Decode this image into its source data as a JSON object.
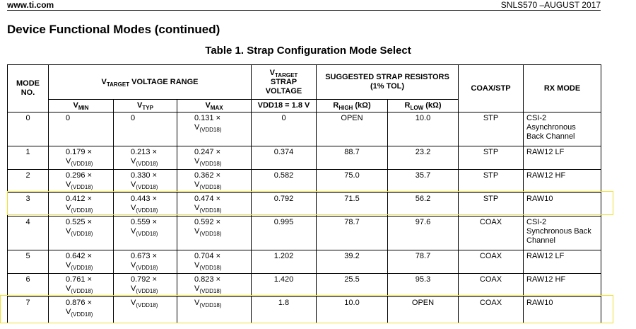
{
  "header": {
    "site": "www.ti.com",
    "doc": "SNLS570 –AUGUST 2017"
  },
  "title": "Device Functional Modes (continued)",
  "table": {
    "caption": "Table 1.  Strap Configuration Mode Select",
    "head": [
      [
        "MODE\nNO.",
        {
          "pre": "V",
          "sub": "TARGET",
          "post": " VOLTAGE RANGE"
        },
        {
          "pre": "V",
          "sub": "TARGET",
          "post": "\nSTRAP\nVOLTAGE"
        },
        "SUGGESTED STRAP RESISTORS\n(1% TOL)",
        "COAX/STP",
        "RX MODE"
      ],
      [
        {
          "pre": "V",
          "sub": "MIN"
        },
        {
          "pre": "V",
          "sub": "TYP"
        },
        {
          "pre": "V",
          "sub": "MAX"
        },
        "VDD18 = 1.8 V",
        {
          "pre": "R",
          "sub": "HIGH",
          "post": " (kΩ)"
        },
        {
          "pre": "R",
          "sub": "LOW",
          "post": " (kΩ)"
        }
      ]
    ],
    "rows": [
      [
        "0",
        "0",
        "0",
        {
          "pre": "0.131 × V",
          "sub": "(VDD18)"
        },
        "0",
        "OPEN",
        "10.0",
        "STP",
        "CSI-2\nAsynchronous\nBack Channel"
      ],
      [
        "1",
        {
          "pre": "0.179 × V",
          "sub": "(VDD18)"
        },
        {
          "pre": "0.213 × V",
          "sub": "(VDD18)"
        },
        {
          "pre": "0.247 × V",
          "sub": "(VDD18)"
        },
        "0.374",
        "88.7",
        "23.2",
        "STP",
        "RAW12 LF"
      ],
      [
        "2",
        {
          "pre": "0.296 × V",
          "sub": "(VDD18)"
        },
        {
          "pre": "0.330 × V",
          "sub": "(VDD18)"
        },
        {
          "pre": "0.362 × V",
          "sub": "(VDD18)"
        },
        "0.582",
        "75.0",
        "35.7",
        "STP",
        "RAW12 HF"
      ],
      [
        "3",
        {
          "pre": "0.412 × V",
          "sub": "(VDD18)"
        },
        {
          "pre": "0.443 × V",
          "sub": "(VDD18)"
        },
        {
          "pre": "0.474 × V",
          "sub": "(VDD18)"
        },
        "0.792",
        "71.5",
        "56.2",
        "STP",
        "RAW10"
      ],
      [
        "4",
        {
          "pre": "0.525 × V",
          "sub": "(VDD18)"
        },
        {
          "pre": "0.559 × V",
          "sub": "(VDD18)"
        },
        {
          "pre": "0.592 × V",
          "sub": "(VDD18)"
        },
        "0.995",
        "78.7",
        "97.6",
        "COAX",
        "CSI-2\nSynchronous Back\nChannel"
      ],
      [
        "5",
        {
          "pre": "0.642 × V",
          "sub": "(VDD18)"
        },
        {
          "pre": "0.673 × V",
          "sub": "(VDD18)"
        },
        {
          "pre": "0.704 × V",
          "sub": "(VDD18)"
        },
        "1.202",
        "39.2",
        "78.7",
        "COAX",
        "RAW12 LF"
      ],
      [
        "6",
        {
          "pre": "0.761 × V",
          "sub": "(VDD18)"
        },
        {
          "pre": "0.792 × V",
          "sub": "(VDD18)"
        },
        {
          "pre": "0.823 × V",
          "sub": "(VDD18)"
        },
        "1.420",
        "25.5",
        "95.3",
        "COAX",
        "RAW12 HF"
      ],
      [
        "7",
        {
          "pre": "0.876 × V",
          "sub": "(VDD18)"
        },
        {
          "pre": "V",
          "sub": "(VDD18)"
        },
        {
          "pre": "V",
          "sub": "(VDD18)"
        },
        "1.8",
        "10.0",
        "OPEN",
        "COAX",
        "RAW10"
      ]
    ]
  }
}
